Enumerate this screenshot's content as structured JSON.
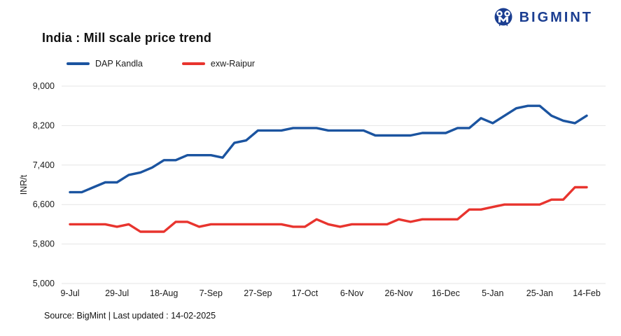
{
  "brand": {
    "name": "BIGMINT",
    "color": "#1b3e91"
  },
  "header": {
    "title": "India : Mill scale price trend"
  },
  "legend": [
    {
      "label": "DAP Kandla",
      "color": "#1b54a0"
    },
    {
      "label": "exw-Raipur",
      "color": "#e8342e"
    }
  ],
  "footer": {
    "source": "Source: BigMint | Last updated : 14-02-2025"
  },
  "chart_data": {
    "type": "line",
    "title": "India : Mill scale price trend",
    "xlabel": "",
    "ylabel": "INR/t",
    "ylim": [
      5000,
      9000
    ],
    "y_ticks": [
      5000,
      5800,
      6600,
      7400,
      8200,
      9000
    ],
    "x_tick_labels": [
      "9-Jul",
      "29-Jul",
      "18-Aug",
      "7-Sep",
      "27-Sep",
      "17-Oct",
      "6-Nov",
      "26-Nov",
      "16-Dec",
      "5-Jan",
      "25-Jan",
      "14-Feb"
    ],
    "x_tick_every": 4,
    "n_points": 45,
    "grid": "horizontal",
    "legend_position": "top-left",
    "grid_color": "#e6e6e6",
    "tick_color": "#1a1a1a",
    "series": [
      {
        "name": "DAP Kandla",
        "color": "#1b54a0",
        "values": [
          6850,
          6850,
          6950,
          7050,
          7050,
          7200,
          7250,
          7350,
          7500,
          7500,
          7600,
          7600,
          7600,
          7550,
          7850,
          7900,
          8100,
          8100,
          8100,
          8150,
          8150,
          8150,
          8100,
          8100,
          8100,
          8100,
          8000,
          8000,
          8000,
          8000,
          8050,
          8050,
          8050,
          8150,
          8150,
          8350,
          8250,
          8400,
          8550,
          8600,
          8600,
          8400,
          8300,
          8250,
          8400
        ]
      },
      {
        "name": "exw-Raipur",
        "color": "#e8342e",
        "values": [
          6200,
          6200,
          6200,
          6200,
          6150,
          6200,
          6050,
          6050,
          6050,
          6250,
          6250,
          6150,
          6200,
          6200,
          6200,
          6200,
          6200,
          6200,
          6200,
          6150,
          6150,
          6300,
          6200,
          6150,
          6200,
          6200,
          6200,
          6200,
          6300,
          6250,
          6300,
          6300,
          6300,
          6300,
          6500,
          6500,
          6550,
          6600,
          6600,
          6600,
          6600,
          6700,
          6700,
          6950,
          6950
        ]
      }
    ]
  }
}
